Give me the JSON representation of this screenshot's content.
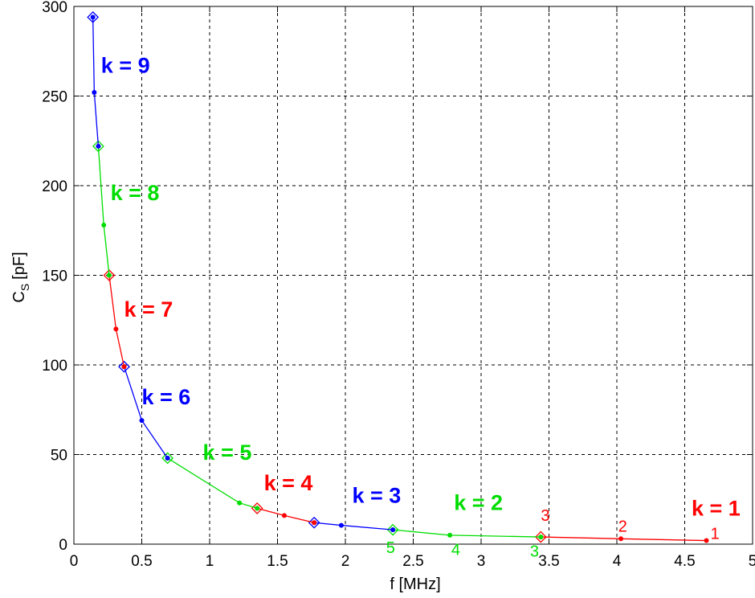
{
  "chart_data": {
    "type": "line",
    "xlabel": "f [MHz]",
    "ylabel": {
      "main": "C",
      "sub": "S",
      "unit": "[pF]"
    },
    "xlim": [
      0,
      5
    ],
    "ylim": [
      0,
      300
    ],
    "xticks": [
      "0",
      "0.5",
      "1",
      "1.5",
      "2",
      "2.5",
      "3",
      "3.5",
      "4",
      "4.5",
      "5"
    ],
    "yticks": [
      "0",
      "50",
      "100",
      "150",
      "200",
      "250",
      "300"
    ],
    "grid": true,
    "colors": {
      "red": "#ff0000",
      "green": "#00dd00",
      "blue": "#0000ff"
    },
    "segments": [
      {
        "label": "k = 1",
        "color": "#ff0000",
        "points": [
          [
            4.66,
            2
          ],
          [
            4.03,
            3
          ],
          [
            3.44,
            4
          ]
        ],
        "diamonds": [
          [
            3.44,
            4
          ]
        ],
        "label_at": [
          4.55,
          16
        ]
      },
      {
        "label": "k = 2",
        "color": "#00dd00",
        "points": [
          [
            3.44,
            4
          ],
          [
            2.77,
            5
          ],
          [
            2.35,
            8
          ]
        ],
        "diamonds": [
          [
            2.35,
            8
          ]
        ],
        "label_at": [
          2.8,
          19
        ]
      },
      {
        "label": "k = 3",
        "color": "#0000ff",
        "points": [
          [
            2.35,
            8
          ],
          [
            1.97,
            10.5
          ],
          [
            1.77,
            12
          ]
        ],
        "diamonds": [
          [
            1.77,
            12
          ]
        ],
        "label_at": [
          2.05,
          23
        ]
      },
      {
        "label": "k = 4",
        "color": "#ff0000",
        "points": [
          [
            1.77,
            12
          ],
          [
            1.55,
            16
          ],
          [
            1.35,
            20
          ]
        ],
        "diamonds": [
          [
            1.35,
            20
          ]
        ],
        "label_at": [
          1.4,
          30
        ]
      },
      {
        "label": "k = 5",
        "color": "#00dd00",
        "points": [
          [
            1.35,
            20
          ],
          [
            1.22,
            23
          ],
          [
            0.69,
            48
          ]
        ],
        "diamonds": [
          [
            0.69,
            48
          ]
        ],
        "label_at": [
          0.95,
          47
        ]
      },
      {
        "label": "k = 6",
        "color": "#0000ff",
        "points": [
          [
            0.69,
            48
          ],
          [
            0.5,
            69
          ],
          [
            0.37,
            99
          ]
        ],
        "diamonds": [
          [
            0.37,
            99
          ]
        ],
        "label_at": [
          0.5,
          78
        ]
      },
      {
        "label": "k = 7",
        "color": "#ff0000",
        "points": [
          [
            0.37,
            99
          ],
          [
            0.31,
            120
          ],
          [
            0.26,
            150
          ]
        ],
        "diamonds": [
          [
            0.26,
            150
          ]
        ],
        "label_at": [
          0.37,
          127
        ]
      },
      {
        "label": "k = 8",
        "color": "#00dd00",
        "points": [
          [
            0.26,
            150
          ],
          [
            0.22,
            178
          ],
          [
            0.18,
            222
          ]
        ],
        "diamonds": [
          [
            0.18,
            222
          ]
        ],
        "label_at": [
          0.27,
          192
        ]
      },
      {
        "label": "k = 9",
        "color": "#0000ff",
        "points": [
          [
            0.18,
            222
          ],
          [
            0.15,
            252
          ],
          [
            0.14,
            294
          ]
        ],
        "diamonds": [
          [
            0.14,
            294
          ]
        ],
        "label_at": [
          0.2,
          263
        ]
      }
    ],
    "point_labels": [
      {
        "text": "1",
        "x": 4.69,
        "y": 3,
        "color": "#ff0000"
      },
      {
        "text": "2",
        "x": 4.01,
        "y": 7,
        "color": "#ff0000"
      },
      {
        "text": "3",
        "x": 3.44,
        "y": 13,
        "color": "#ff0000"
      },
      {
        "text": "3",
        "x": 3.36,
        "y": -7,
        "color": "#00dd00"
      },
      {
        "text": "4",
        "x": 2.78,
        "y": -6,
        "color": "#00dd00"
      },
      {
        "text": "5",
        "x": 2.3,
        "y": -5,
        "color": "#00dd00"
      }
    ]
  }
}
